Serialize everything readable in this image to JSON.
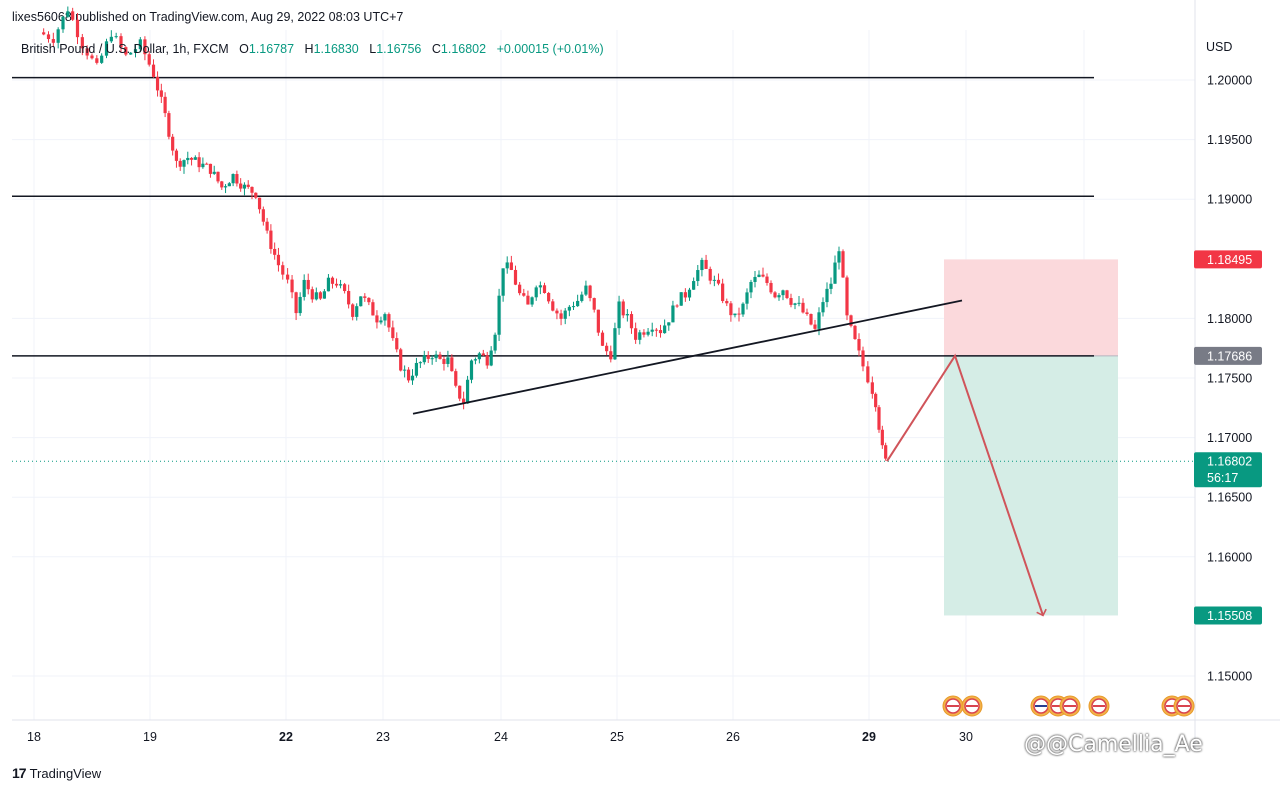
{
  "publisher": "lixes56068 published on TradingView.com, Aug 29, 2022 08:03 UTC+7",
  "legend": {
    "symbol": "British Pound / U.S. Dollar, 1h, FXCM",
    "open_label": "O",
    "open": "1.16787",
    "high_label": "H",
    "high": "1.16830",
    "low_label": "L",
    "low": "1.16756",
    "close_label": "C",
    "close": "1.16802",
    "change": "+0.00015 (+0.01%)"
  },
  "currency": "USD",
  "footer_logo": "TradingView",
  "watermark": "@@Camellia_Ae",
  "colors": {
    "up": "#089981",
    "down": "#f23645",
    "target_zone": "#d5ede6",
    "stop_zone": "#fbd9dc",
    "arrow": "#d0545a"
  },
  "chart_data": {
    "type": "candlestick",
    "timeframe": "1h",
    "ylim": [
      1.146,
      1.2045
    ],
    "y_ticks": [
      "1.20000",
      "1.19500",
      "1.19000",
      "1.18000",
      "1.17500",
      "1.17000",
      "1.16500",
      "1.16000",
      "1.15000"
    ],
    "x_ticks": [
      "18",
      "19",
      "22",
      "23",
      "24",
      "25",
      "26",
      "29",
      "30"
    ],
    "x_ticks_bold": [
      "22",
      "29"
    ],
    "price_tags": [
      {
        "label": "1.18495",
        "value": 1.18495,
        "color": "#f23645"
      },
      {
        "label": "1.17686",
        "value": 1.17686,
        "color": "#787b86"
      },
      {
        "label": "1.15508",
        "value": 1.15508,
        "color": "#089981"
      }
    ],
    "current_price": {
      "label": "1.16802",
      "countdown": "56:17",
      "value": 1.16802,
      "color": "#089981"
    },
    "horizontal_levels": [
      1.2002,
      1.19025,
      1.17686
    ],
    "trendline": {
      "from": [
        "Aug 23",
        1.172
      ],
      "to": [
        "Aug 30",
        1.1815
      ]
    },
    "position": {
      "type": "short",
      "entry": 1.17686,
      "stop": 1.18495,
      "target": 1.15508
    },
    "projection": {
      "points": [
        1.16802,
        1.17686,
        1.15508
      ]
    },
    "candle_path": [
      [
        "Aug 18",
        1.204
      ],
      [
        "Aug 18",
        1.2035
      ],
      [
        "Aug 18",
        1.206
      ],
      [
        "Aug 18",
        1.203
      ],
      [
        "Aug 18",
        1.201
      ],
      [
        "Aug 18",
        1.204
      ],
      [
        "Aug 18",
        1.202
      ],
      [
        "Aug 18",
        1.203
      ],
      [
        "Aug 19",
        1.2005
      ],
      [
        "Aug 19",
        1.197
      ],
      [
        "Aug 19",
        1.193
      ],
      [
        "Aug 19",
        1.1935
      ],
      [
        "Aug 19",
        1.193
      ],
      [
        "Aug 19",
        1.1925
      ],
      [
        "Aug 19",
        1.191
      ],
      [
        "Aug 19",
        1.192
      ],
      [
        "Aug 19",
        1.191
      ],
      [
        "Aug 19",
        1.1905
      ],
      [
        "Aug 19",
        1.187
      ],
      [
        "Aug 19",
        1.1845
      ],
      [
        "Aug 22",
        1.183
      ],
      [
        "Aug 22",
        1.1805
      ],
      [
        "Aug 22",
        1.183
      ],
      [
        "Aug 22",
        1.182
      ],
      [
        "Aug 22",
        1.1815
      ],
      [
        "Aug 22",
        1.183
      ],
      [
        "Aug 22",
        1.183
      ],
      [
        "Aug 22",
        1.182
      ],
      [
        "Aug 22",
        1.1805
      ],
      [
        "Aug 22",
        1.182
      ],
      [
        "Aug 22",
        1.181
      ],
      [
        "Aug 22",
        1.18
      ],
      [
        "Aug 23",
        1.1805
      ],
      [
        "Aug 23",
        1.178
      ],
      [
        "Aug 23",
        1.176
      ],
      [
        "Aug 23",
        1.175
      ],
      [
        "Aug 23",
        1.176
      ],
      [
        "Aug 23",
        1.1765
      ],
      [
        "Aug 23",
        1.177
      ],
      [
        "Aug 23",
        1.1765
      ],
      [
        "Aug 23",
        1.1765
      ],
      [
        "Aug 23",
        1.174
      ],
      [
        "Aug 23",
        1.173
      ],
      [
        "Aug 23",
        1.1765
      ],
      [
        "Aug 23",
        1.177
      ],
      [
        "Aug 23",
        1.1765
      ],
      [
        "Aug 23",
        1.179
      ],
      [
        "Aug 24",
        1.1845
      ],
      [
        "Aug 24",
        1.184
      ],
      [
        "Aug 24",
        1.182
      ],
      [
        "Aug 24",
        1.181
      ],
      [
        "Aug 24",
        1.183
      ],
      [
        "Aug 24",
        1.1825
      ],
      [
        "Aug 24",
        1.181
      ],
      [
        "Aug 24",
        1.18
      ],
      [
        "Aug 24",
        1.181
      ],
      [
        "Aug 24",
        1.1815
      ],
      [
        "Aug 24",
        1.1825
      ],
      [
        "Aug 24",
        1.1805
      ],
      [
        "Aug 24",
        1.1775
      ],
      [
        "Aug 24",
        1.177
      ],
      [
        "Aug 25",
        1.181
      ],
      [
        "Aug 25",
        1.18
      ],
      [
        "Aug 25",
        1.1785
      ],
      [
        "Aug 25",
        1.179
      ],
      [
        "Aug 25",
        1.1795
      ],
      [
        "Aug 25",
        1.179
      ],
      [
        "Aug 25",
        1.18
      ],
      [
        "Aug 25",
        1.1815
      ],
      [
        "Aug 25",
        1.182
      ],
      [
        "Aug 25",
        1.1835
      ],
      [
        "Aug 25",
        1.1845
      ],
      [
        "Aug 25",
        1.1835
      ],
      [
        "Aug 25",
        1.1825
      ],
      [
        "Aug 25",
        1.181
      ],
      [
        "Aug 26",
        1.18
      ],
      [
        "Aug 26",
        1.181
      ],
      [
        "Aug 26",
        1.183
      ],
      [
        "Aug 26",
        1.1835
      ],
      [
        "Aug 26",
        1.183
      ],
      [
        "Aug 26",
        1.182
      ],
      [
        "Aug 26",
        1.1825
      ],
      [
        "Aug 26",
        1.1815
      ],
      [
        "Aug 26",
        1.181
      ],
      [
        "Aug 26",
        1.18
      ],
      [
        "Aug 26",
        1.179
      ],
      [
        "Aug 26",
        1.1815
      ],
      [
        "Aug 26",
        1.183
      ],
      [
        "Aug 26",
        1.186
      ],
      [
        "Aug 26",
        1.18
      ],
      [
        "Aug 26",
        1.178
      ],
      [
        "Aug 26",
        1.176
      ],
      [
        "Aug 29",
        1.175
      ],
      [
        "Aug 29",
        1.174
      ],
      [
        "Aug 29",
        1.173
      ],
      [
        "Aug 29",
        1.171
      ],
      [
        "Aug 29",
        1.169
      ],
      [
        "Aug 29",
        1.168
      ]
    ]
  }
}
